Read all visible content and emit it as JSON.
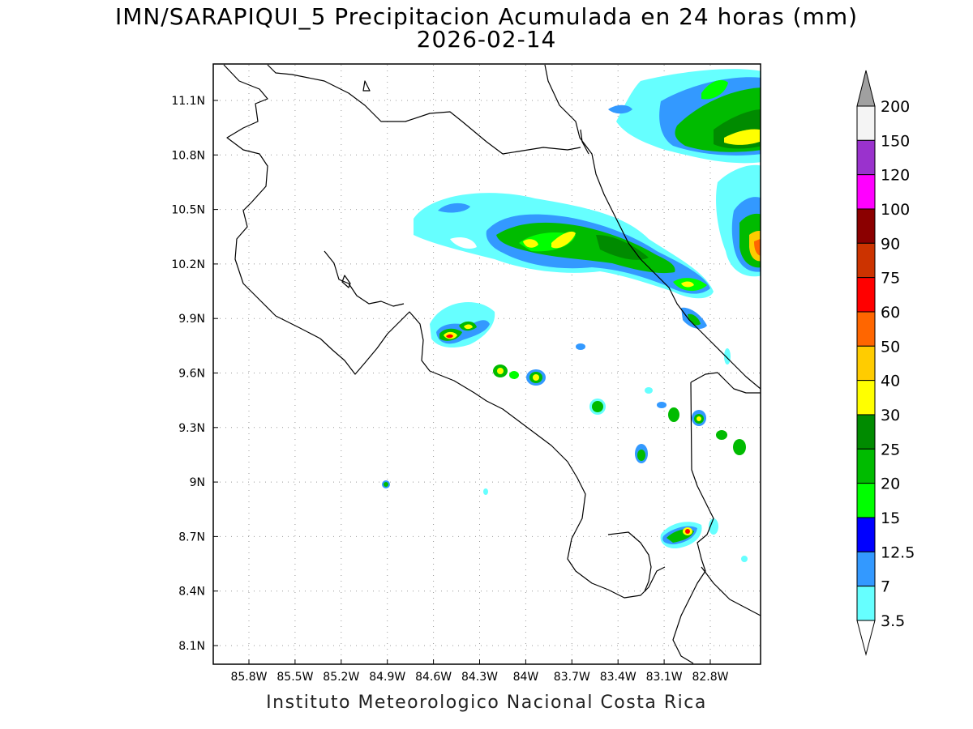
{
  "header": {
    "title": "IMN/SARAPIQUI_5 Precipitacion Acumulada en 24 horas (mm)",
    "date": "2026-02-14"
  },
  "footer": {
    "credit": "Instituto Meteorologico Nacional Costa Rica"
  },
  "map": {
    "lon_ticks": [
      "85.8W",
      "85.5W",
      "85.2W",
      "84.9W",
      "84.6W",
      "84.3W",
      "84W",
      "83.7W",
      "83.4W",
      "83.1W",
      "82.8W"
    ],
    "lat_ticks": [
      "11.1N",
      "10.8N",
      "10.5N",
      "10.2N",
      "9.9N",
      "9.6N",
      "9.3N",
      "9N",
      "8.7N",
      "8.4N",
      "8.1N"
    ],
    "grid": true
  },
  "colorbar": {
    "levels": [
      "200",
      "150",
      "120",
      "100",
      "90",
      "75",
      "60",
      "50",
      "40",
      "30",
      "25",
      "20",
      "15",
      "12.5",
      "7",
      "3.5"
    ],
    "colors": [
      "#a0a0a0",
      "#f4f4f4",
      "#9a32cd",
      "#ff00ff",
      "#8b0000",
      "#cc3300",
      "#ff0000",
      "#ff6600",
      "#ffcc00",
      "#ffff00",
      "#008b00",
      "#00bb00",
      "#00ff00",
      "#0000ff",
      "#3399ff",
      "#66ffff"
    ]
  }
}
